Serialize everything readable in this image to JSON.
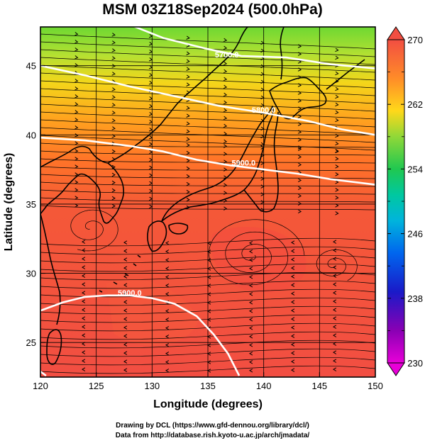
{
  "title": "MSM 03Z18Sep2024 (500.0hPa)",
  "map": {
    "lon_range": [
      120,
      150
    ],
    "lat_range": [
      22.5,
      47.8
    ],
    "x_ticks": [
      120,
      125,
      130,
      135,
      140,
      145,
      150
    ],
    "y_ticks": [
      25,
      30,
      35,
      40,
      45
    ],
    "xlabel": "Longitude (degrees)",
    "ylabel": "Latitude  (degrees)",
    "grid": true
  },
  "contours": [
    {
      "label": "5700.0",
      "label_lon": 136.7,
      "label_lat": 45.6,
      "points": [
        [
          120,
          50.5
        ],
        [
          126,
          48.6
        ],
        [
          131,
          47.0
        ],
        [
          135,
          46.2
        ],
        [
          138,
          45.7
        ],
        [
          142,
          45.6
        ],
        [
          146,
          45.1
        ],
        [
          150,
          44.8
        ]
      ]
    },
    {
      "label": "5800.0",
      "label_lon": 140.0,
      "label_lat": 41.6,
      "points": [
        [
          120,
          45.0
        ],
        [
          124,
          44.3
        ],
        [
          128,
          43.5
        ],
        [
          132,
          42.8
        ],
        [
          136,
          42.1
        ],
        [
          140,
          41.6
        ],
        [
          144,
          41.0
        ],
        [
          147,
          40.4
        ],
        [
          150,
          40.0
        ]
      ]
    },
    {
      "label": "5900.0",
      "label_lon": 138.2,
      "label_lat": 37.8,
      "points": [
        [
          120,
          39.8
        ],
        [
          124,
          39.6
        ],
        [
          128,
          39.2
        ],
        [
          131,
          38.8
        ],
        [
          134,
          38.2
        ],
        [
          137,
          37.8
        ],
        [
          140,
          37.5
        ],
        [
          143,
          37.2
        ],
        [
          146,
          36.8
        ],
        [
          150,
          36.4
        ]
      ]
    },
    {
      "label": "5900.0",
      "label_lon": 128.0,
      "label_lat": 28.4,
      "points": [
        [
          120,
          27.3
        ],
        [
          122,
          27.9
        ],
        [
          124,
          28.3
        ],
        [
          126,
          28.4
        ],
        [
          128,
          28.4
        ],
        [
          130,
          28.2
        ],
        [
          132,
          27.8
        ],
        [
          134,
          26.9
        ],
        [
          135.5,
          25.6
        ],
        [
          136.8,
          24.2
        ],
        [
          137.8,
          22.6
        ]
      ]
    },
    {
      "label": "",
      "label_lon": 0,
      "label_lat": 0,
      "points": [
        [
          119.5,
          23.2
        ],
        [
          120.5,
          22.6
        ]
      ]
    }
  ],
  "colorbar": {
    "min": 230,
    "max": 270,
    "tick_values": [
      270,
      262,
      254,
      246,
      238,
      230
    ],
    "tick_labels": [
      "270",
      "262",
      "254",
      "246",
      "238",
      "230"
    ],
    "colors": [
      "#cc00cc",
      "#8800aa",
      "#1a1ac8",
      "#0055ee",
      "#0099dd",
      "#00bbcc",
      "#00c8aa",
      "#22c860",
      "#66d040",
      "#bbdd33",
      "#ffdd00",
      "#ffaa22",
      "#ff7733",
      "#f55040"
    ]
  },
  "credits": {
    "line1": "Drawing by DCL (https://www.gfd-dennou.org/library/dcl/)",
    "line2": "Data from http://database.rish.kyoto-u.ac.jp/arch/jmadata/"
  }
}
